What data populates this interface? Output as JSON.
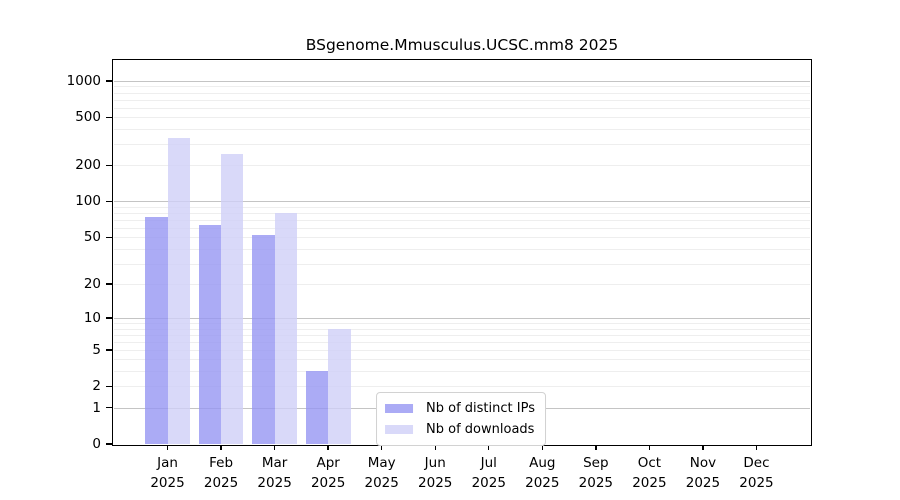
{
  "chart_data": {
    "type": "bar",
    "title": "BSgenome.Mmusculus.UCSC.mm8 2025",
    "scale": "log1p",
    "categories": [
      "Jan",
      "Feb",
      "Mar",
      "Apr",
      "May",
      "Jun",
      "Jul",
      "Aug",
      "Sep",
      "Oct",
      "Nov",
      "Dec"
    ],
    "year": "2025",
    "series": [
      {
        "name": "Nb of distinct IPs",
        "color": "rgba(150,150,243,0.8)",
        "values": [
          74,
          64,
          52,
          3,
          0,
          0,
          0,
          0,
          0,
          0,
          0,
          0
        ]
      },
      {
        "name": "Nb of downloads",
        "color": "rgba(208,208,248,0.8)",
        "values": [
          340,
          248,
          80,
          8,
          0,
          0,
          0,
          0,
          0,
          0,
          0,
          0
        ]
      }
    ],
    "yticks": [
      1000,
      500,
      200,
      100,
      50,
      20,
      10,
      5,
      2,
      1,
      0
    ],
    "ylim": [
      0,
      1462
    ],
    "grid_major": [
      1,
      10,
      100,
      1000
    ],
    "grid_minor": [
      2,
      3,
      4,
      5,
      6,
      7,
      8,
      9,
      20,
      30,
      40,
      50,
      60,
      70,
      80,
      90,
      200,
      300,
      400,
      500,
      600,
      700,
      800,
      900
    ],
    "legend_position": "lower center",
    "colors": {
      "grid_major": "#c4c4c4",
      "grid_minor": "#eeeeee",
      "axis": "#000000",
      "background": "#ffffff"
    }
  }
}
